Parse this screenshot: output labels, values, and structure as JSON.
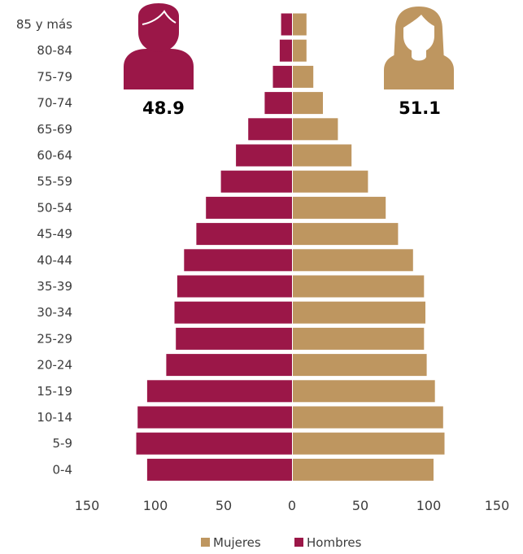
{
  "chart_data": {
    "type": "bar",
    "orientation": "horizontal-pyramid",
    "categories": [
      "85 y más",
      "80-84",
      "75-79",
      "70-74",
      "65-69",
      "60-64",
      "55-59",
      "50-54",
      "45-49",
      "40-44",
      "35-39",
      "30-34",
      "25-29",
      "20-24",
      "15-19",
      "10-14",
      "5-9",
      "0-4"
    ],
    "series": [
      {
        "name": "Hombres",
        "color": "#9b1748",
        "values": [
          8,
          9,
          14,
          20,
          32,
          41,
          52,
          63,
          70,
          79,
          84,
          86,
          85,
          92,
          106,
          113,
          114,
          106
        ]
      },
      {
        "name": "Mujeres",
        "color": "#be9660",
        "values": [
          10,
          10,
          15,
          22,
          33,
          43,
          55,
          68,
          77,
          88,
          96,
          97,
          96,
          98,
          104,
          110,
          111,
          103
        ]
      }
    ],
    "xlim": [
      -150,
      150
    ],
    "x_ticks": [
      "150",
      "100",
      "50",
      "0",
      "50",
      "100",
      "150"
    ],
    "legend": {
      "position": "bottom-center",
      "entries": [
        "Mujeres",
        "Hombres"
      ]
    },
    "grid": false,
    "annotations": {
      "male_percent": "48.9",
      "female_percent": "51.1",
      "male_icon": "man-avatar-icon",
      "female_icon": "woman-avatar-icon"
    }
  }
}
